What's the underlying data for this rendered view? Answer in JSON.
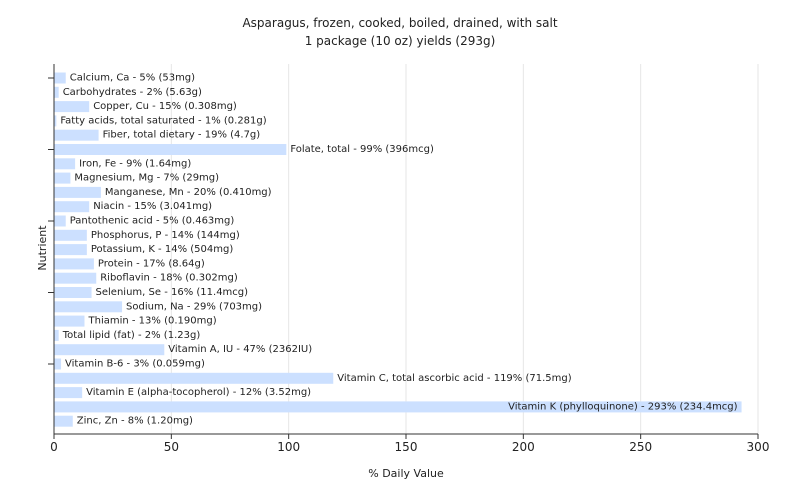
{
  "chart_data": {
    "type": "bar",
    "orientation": "horizontal",
    "title": "Asparagus, frozen, cooked, boiled, drained, with salt",
    "subtitle": "1 package (10 oz) yields (293g)",
    "xlabel": "% Daily Value",
    "ylabel": "Nutrient",
    "xlim": [
      0,
      300
    ],
    "xticks": [
      0,
      50,
      100,
      150,
      200,
      250,
      300
    ],
    "grid": true,
    "bar_color": "#cce0ff",
    "categories": [
      "Calcium, Ca",
      "Carbohydrates",
      "Copper, Cu",
      "Fatty acids, total saturated",
      "Fiber, total dietary",
      "Folate, total",
      "Iron, Fe",
      "Magnesium, Mg",
      "Manganese, Mn",
      "Niacin",
      "Pantothenic acid",
      "Phosphorus, P",
      "Potassium, K",
      "Protein",
      "Riboflavin",
      "Selenium, Se",
      "Sodium, Na",
      "Thiamin",
      "Total lipid (fat)",
      "Vitamin A, IU",
      "Vitamin B-6",
      "Vitamin C, total ascorbic acid",
      "Vitamin E (alpha-tocopherol)",
      "Vitamin K (phylloquinone)",
      "Zinc, Zn"
    ],
    "values": [
      5,
      2,
      15,
      1,
      19,
      99,
      9,
      7,
      20,
      15,
      5,
      14,
      14,
      17,
      18,
      16,
      29,
      13,
      2,
      47,
      3,
      119,
      12,
      293,
      8
    ],
    "labels": [
      "Calcium, Ca - 5% (53mg)",
      "Carbohydrates - 2% (5.63g)",
      "Copper, Cu - 15% (0.308mg)",
      "Fatty acids, total saturated - 1% (0.281g)",
      "Fiber, total dietary - 19% (4.7g)",
      "Folate, total - 99% (396mcg)",
      "Iron, Fe - 9% (1.64mg)",
      "Magnesium, Mg - 7% (29mg)",
      "Manganese, Mn - 20% (0.410mg)",
      "Niacin - 15% (3.041mg)",
      "Pantothenic acid - 5% (0.463mg)",
      "Phosphorus, P - 14% (144mg)",
      "Potassium, K - 14% (504mg)",
      "Protein - 17% (8.64g)",
      "Riboflavin - 18% (0.302mg)",
      "Selenium, Se - 16% (11.4mcg)",
      "Sodium, Na - 29% (703mg)",
      "Thiamin - 13% (0.190mg)",
      "Total lipid (fat) - 2% (1.23g)",
      "Vitamin A, IU - 47% (2362IU)",
      "Vitamin B-6 - 3% (0.059mg)",
      "Vitamin C, total ascorbic acid - 119% (71.5mg)",
      "Vitamin E (alpha-tocopherol) - 12% (3.52mg)",
      "Vitamin K (phylloquinone) - 293% (234.4mcg)",
      "Zinc, Zn - 8% (1.20mg)"
    ]
  }
}
